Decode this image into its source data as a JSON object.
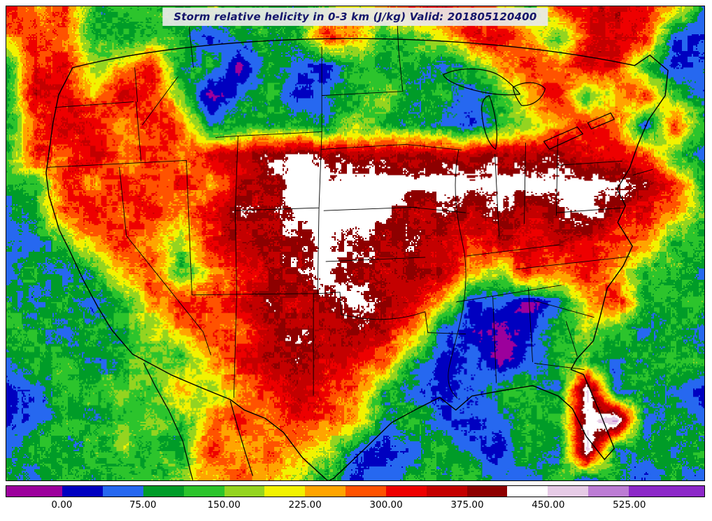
{
  "title": "Storm relative helicity in 0-3 km (J/kg) Valid: 201805120400",
  "style": {
    "title_color": "#15156b",
    "title_bg": "#e9e9e9",
    "frame_color": "#000000",
    "background": "#ffffff"
  },
  "chart_data": {
    "type": "heatmap",
    "title": "Storm relative helicity in 0-3 km (J/kg)",
    "valid": "201805120400",
    "units": "J/kg",
    "region": "Continental United States",
    "legend_position": "bottom",
    "colorbar": {
      "tick_labels": [
        "0.00",
        "75.00",
        "150.00",
        "225.00",
        "300.00",
        "375.00",
        "450.00",
        "525.00"
      ],
      "tick_values": [
        0,
        75,
        150,
        225,
        300,
        375,
        450,
        525
      ],
      "value_range": [
        -52,
        595
      ],
      "boundaries": [
        -52,
        0,
        37.5,
        75,
        112.5,
        150,
        187.5,
        225,
        262.5,
        300,
        337.5,
        375,
        412.5,
        450,
        487.5,
        525,
        595
      ],
      "colors": [
        "#9c009c",
        "#0000c0",
        "#2668f0",
        "#009c28",
        "#2cc42c",
        "#94d420",
        "#f2f200",
        "#ffa400",
        "#ff5200",
        "#ee0000",
        "#c40000",
        "#8e0000",
        "#ffffff",
        "#e6cbe6",
        "#bc7cd4",
        "#8c28c8"
      ]
    },
    "field_grid": {
      "cols": 25,
      "rows": 17,
      "values": [
        [
          318,
          243,
          318,
          95,
          118,
          118,
          118,
          165,
          118,
          118,
          95,
          165,
          205,
          243,
          318,
          318,
          280,
          243,
          118,
          318,
          318,
          355,
          318,
          243,
          58
        ],
        [
          243,
          318,
          280,
          118,
          95,
          118,
          118,
          20,
          118,
          95,
          118,
          318,
          243,
          118,
          118,
          205,
          318,
          355,
          243,
          118,
          318,
          355,
          318,
          58,
          20
        ],
        [
          118,
          318,
          318,
          165,
          243,
          318,
          95,
          118,
          -20,
          118,
          58,
          20,
          118,
          95,
          118,
          58,
          118,
          243,
          318,
          280,
          355,
          318,
          118,
          20,
          58
        ],
        [
          95,
          355,
          318,
          243,
          355,
          318,
          165,
          -20,
          58,
          118,
          20,
          58,
          118,
          165,
          95,
          118,
          58,
          118,
          243,
          318,
          118,
          243,
          318,
          118,
          58
        ],
        [
          118,
          280,
          355,
          318,
          243,
          318,
          280,
          58,
          118,
          95,
          118,
          58,
          165,
          118,
          95,
          58,
          20,
          118,
          165,
          243,
          318,
          280,
          20,
          318,
          118
        ],
        [
          118,
          318,
          280,
          355,
          243,
          318,
          280,
          318,
          355,
          392,
          430,
          392,
          355,
          392,
          355,
          392,
          355,
          392,
          355,
          392,
          318,
          318,
          280,
          118,
          58
        ],
        [
          118,
          118,
          318,
          243,
          318,
          280,
          318,
          243,
          355,
          392,
          430,
          430,
          430,
          430,
          430,
          430,
          430,
          430,
          430,
          430,
          430,
          430,
          392,
          318,
          118
        ],
        [
          58,
          118,
          280,
          318,
          280,
          318,
          243,
          318,
          392,
          355,
          430,
          430,
          430,
          430,
          355,
          392,
          355,
          392,
          355,
          392,
          430,
          355,
          318,
          243,
          118
        ],
        [
          58,
          58,
          118,
          243,
          318,
          243,
          165,
          318,
          355,
          392,
          392,
          430,
          392,
          392,
          392,
          355,
          318,
          355,
          318,
          355,
          318,
          280,
          243,
          118,
          118
        ],
        [
          58,
          118,
          58,
          118,
          243,
          318,
          118,
          243,
          318,
          355,
          392,
          430,
          392,
          355,
          392,
          355,
          243,
          165,
          318,
          243,
          318,
          243,
          118,
          118,
          58
        ],
        [
          118,
          58,
          118,
          58,
          118,
          243,
          318,
          280,
          318,
          392,
          355,
          392,
          430,
          392,
          355,
          243,
          20,
          58,
          -20,
          58,
          243,
          318,
          118,
          118,
          118
        ],
        [
          118,
          118,
          58,
          118,
          95,
          165,
          243,
          318,
          280,
          355,
          392,
          355,
          392,
          355,
          243,
          58,
          20,
          -20,
          20,
          118,
          165,
          118,
          58,
          118,
          58
        ],
        [
          58,
          118,
          118,
          58,
          118,
          165,
          118,
          243,
          318,
          355,
          392,
          355,
          318,
          280,
          118,
          20,
          58,
          -20,
          58,
          118,
          118,
          58,
          118,
          118,
          118
        ],
        [
          20,
          58,
          118,
          118,
          165,
          118,
          243,
          165,
          243,
          318,
          355,
          318,
          280,
          118,
          58,
          20,
          58,
          118,
          118,
          58,
          468,
          58,
          118,
          58,
          20
        ],
        [
          20,
          58,
          118,
          95,
          118,
          165,
          118,
          243,
          318,
          243,
          318,
          280,
          243,
          58,
          118,
          58,
          20,
          58,
          118,
          118,
          430,
          505,
          58,
          118,
          58
        ],
        [
          58,
          118,
          95,
          118,
          165,
          118,
          95,
          318,
          243,
          280,
          243,
          205,
          58,
          20,
          58,
          118,
          58,
          20,
          118,
          58,
          468,
          58,
          118,
          58,
          118
        ],
        [
          118,
          58,
          118,
          95,
          118,
          118,
          165,
          243,
          280,
          243,
          205,
          118,
          20,
          58,
          118,
          118,
          118,
          58,
          58,
          118,
          58,
          118,
          20,
          118,
          58
        ]
      ]
    }
  }
}
